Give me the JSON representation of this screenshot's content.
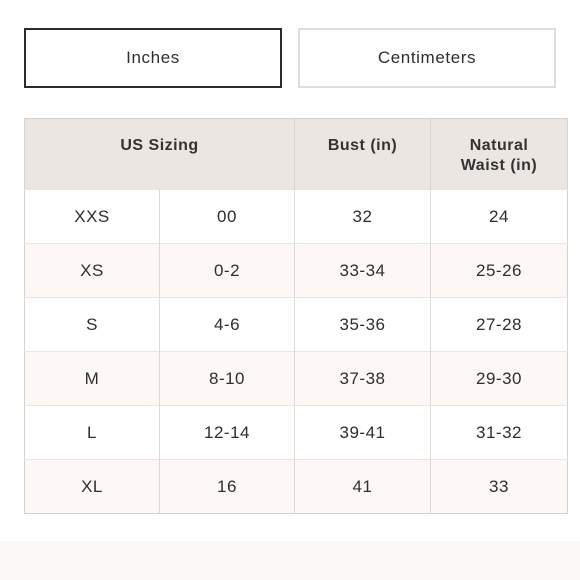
{
  "unit_toggle": {
    "inches_label": "Inches",
    "centimeters_label": "Centimeters",
    "selected": "Inches"
  },
  "size_chart": {
    "headers": {
      "us_sizing": "US Sizing",
      "bust": "Bust (in)",
      "waist_line1": "Natural",
      "waist_line2": "Waist (in)"
    },
    "rows": [
      {
        "size": "XXS",
        "numeric": "00",
        "bust": "32",
        "waist": "24"
      },
      {
        "size": "XS",
        "numeric": "0-2",
        "bust": "33-34",
        "waist": "25-26"
      },
      {
        "size": "S",
        "numeric": "4-6",
        "bust": "35-36",
        "waist": "27-28"
      },
      {
        "size": "M",
        "numeric": "8-10",
        "bust": "37-38",
        "waist": "29-30"
      },
      {
        "size": "L",
        "numeric": "12-14",
        "bust": "39-41",
        "waist": "31-32"
      },
      {
        "size": "XL",
        "numeric": "16",
        "bust": "41",
        "waist": "33"
      }
    ]
  },
  "colors": {
    "header_bg": "#ebe6e1",
    "alt_row_bg": "#fdf8f6",
    "active_border": "#2b2b2b",
    "inactive_border": "#dddddd"
  }
}
